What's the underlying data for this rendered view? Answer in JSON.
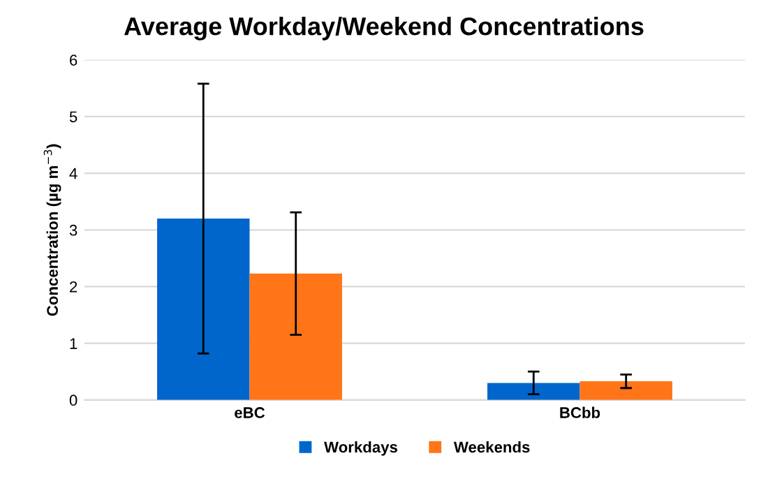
{
  "chart_data": {
    "type": "bar",
    "title": "Average Workday/Weekend Concentrations",
    "ylabel": "Concentration (µg m$^{−3}$)",
    "categories": [
      "eBC",
      "BCbb"
    ],
    "series": [
      {
        "name": "Workdays",
        "color": "#0066cc",
        "values": [
          3.2,
          0.3
        ],
        "errors": [
          2.38,
          0.2
        ]
      },
      {
        "name": "Weekends",
        "color": "#ff7518",
        "values": [
          2.23,
          0.33
        ],
        "errors": [
          1.08,
          0.12
        ]
      }
    ],
    "ylim": [
      0,
      6
    ],
    "yticks": [
      0,
      1,
      2,
      3,
      4,
      5,
      6
    ],
    "grid": "y",
    "legend": "bottom"
  }
}
